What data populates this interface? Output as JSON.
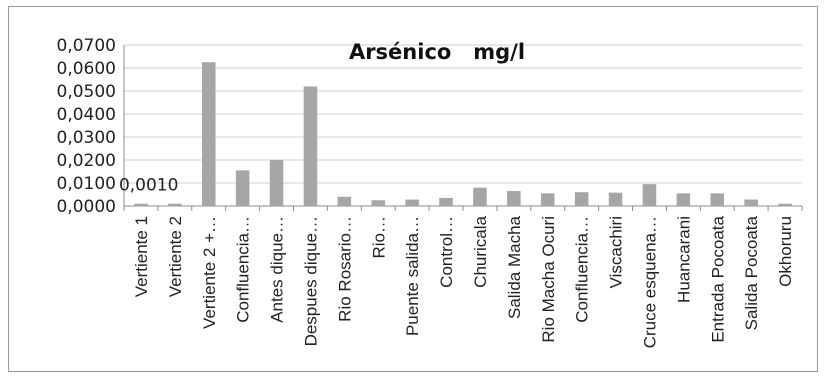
{
  "chart_data": {
    "type": "bar",
    "title": "Arsénico   mg/l",
    "xlabel": "",
    "ylabel": "",
    "ylim": [
      0,
      0.07
    ],
    "yticks": [
      "0,0000",
      "0,0100",
      "0,0200",
      "0,0300",
      "0,0400",
      "0,0500",
      "0,0600",
      "0,0700"
    ],
    "grid": true,
    "bar_color": "#a6a6a6",
    "categories": [
      "Vertiente 1",
      "Vertiente 2",
      "Vertiente 2 +…",
      "Confluencia…",
      "Antes dique…",
      "Despues dique…",
      "Rio Rosario…",
      "Rio…",
      "Puente salida…",
      "Control…",
      "Churicala",
      "Salida Macha",
      "Rio Macha Ocuri",
      "Confluencia…",
      "Viscachiri",
      "Cruce esquena…",
      "Huancarani",
      "Entrada Pocoata",
      "Salida Pocoata",
      "Okhoruru"
    ],
    "values": [
      0.001,
      0.001,
      0.0625,
      0.0155,
      0.02,
      0.052,
      0.004,
      0.0025,
      0.0028,
      0.0035,
      0.008,
      0.0065,
      0.0055,
      0.006,
      0.0058,
      0.0095,
      0.0055,
      0.0055,
      0.0028,
      0.001
    ],
    "data_labels": [
      {
        "index": 0,
        "text": "0,0010"
      }
    ]
  }
}
